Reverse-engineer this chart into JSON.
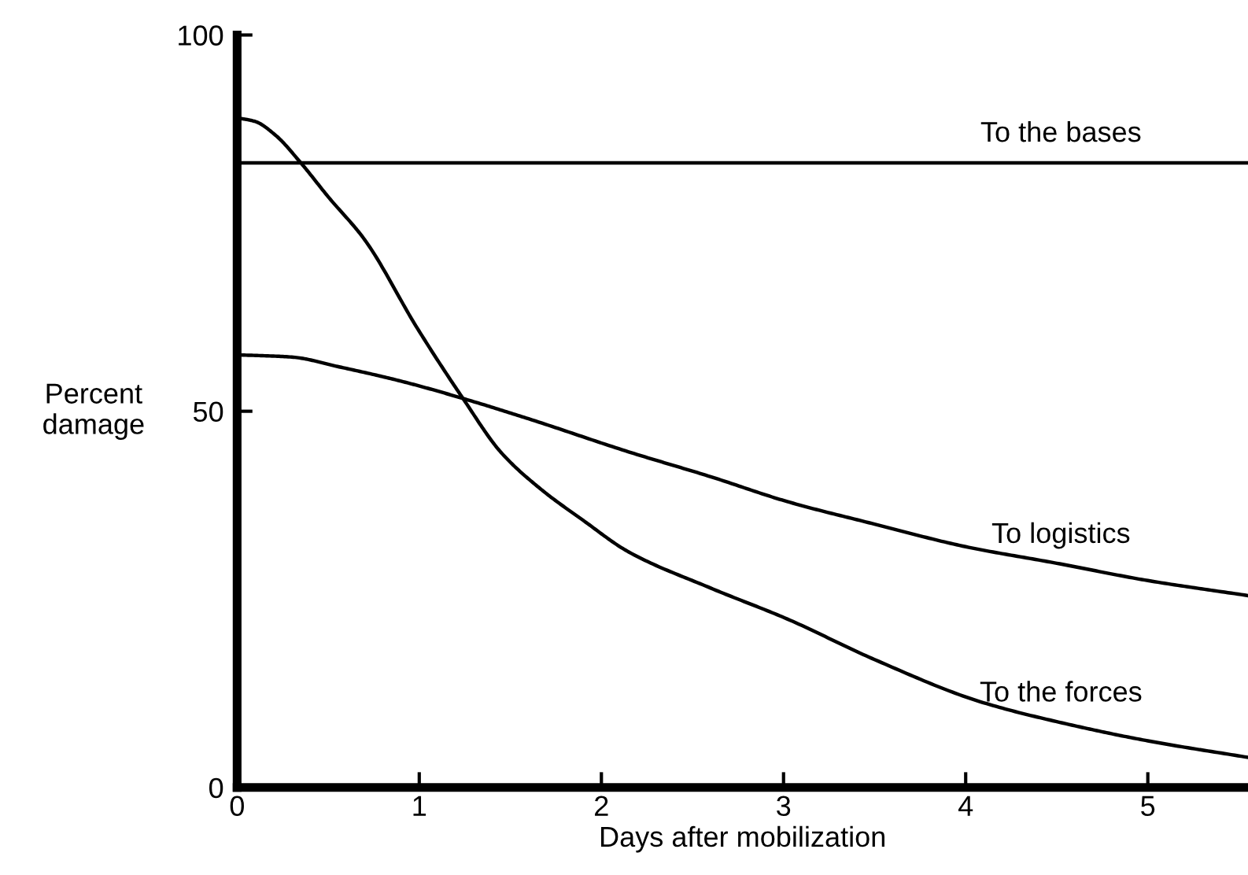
{
  "chart_data": {
    "type": "line",
    "xlabel": "Days after mobilization",
    "ylabel": "Percent\ndamage",
    "xlim": [
      0,
      5.55
    ],
    "ylim": [
      0,
      100
    ],
    "xticks": [
      0,
      1,
      2,
      3,
      4,
      5
    ],
    "yticks": [
      0,
      50,
      100
    ],
    "grid": false,
    "legend": false,
    "marker": "none",
    "line_style": "solid",
    "series": [
      {
        "name": "To the bases",
        "color": "#000000",
        "x": [
          0,
          5.55
        ],
        "values": [
          83,
          83
        ]
      },
      {
        "name": "To logistics",
        "color": "#000000",
        "x": [
          0,
          0.3,
          0.56,
          0.9,
          1.24,
          1.6,
          2.15,
          2.6,
          3.02,
          3.5,
          4.0,
          4.5,
          5.0,
          5.55
        ],
        "values": [
          57.5,
          57.2,
          55.9,
          54,
          51.7,
          49,
          44.6,
          41.3,
          38,
          35,
          32,
          29.8,
          27.5,
          25.5
        ]
      },
      {
        "name": "To the forces",
        "color": "#000000",
        "x": [
          0,
          0.1,
          0.21,
          0.35,
          0.5,
          0.7,
          0.99,
          1.24,
          1.45,
          1.67,
          1.9,
          2.15,
          2.6,
          3.02,
          3.5,
          4.08,
          4.6,
          5.0,
          5.55
        ],
        "values": [
          89,
          88.5,
          86.7,
          83,
          78.5,
          72.8,
          61,
          51.7,
          44.5,
          39.6,
          35.5,
          31.3,
          26.5,
          22.4,
          17,
          11.4,
          8.2,
          6.2,
          4
        ]
      }
    ]
  }
}
